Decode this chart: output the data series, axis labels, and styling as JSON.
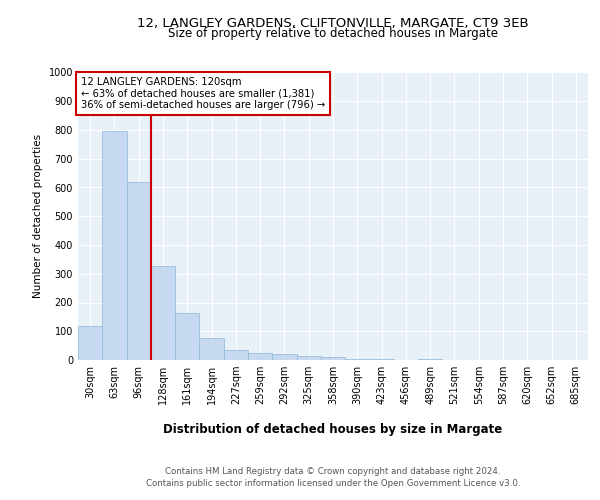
{
  "title1": "12, LANGLEY GARDENS, CLIFTONVILLE, MARGATE, CT9 3EB",
  "title2": "Size of property relative to detached houses in Margate",
  "xlabel": "Distribution of detached houses by size in Margate",
  "ylabel": "Number of detached properties",
  "footer1": "Contains HM Land Registry data © Crown copyright and database right 2024.",
  "footer2": "Contains public sector information licensed under the Open Government Licence v3.0.",
  "annotation_line1": "12 LANGLEY GARDENS: 120sqm",
  "annotation_line2": "← 63% of detached houses are smaller (1,381)",
  "annotation_line3": "36% of semi-detached houses are larger (796) →",
  "categories": [
    "30sqm",
    "63sqm",
    "96sqm",
    "128sqm",
    "161sqm",
    "194sqm",
    "227sqm",
    "259sqm",
    "292sqm",
    "325sqm",
    "358sqm",
    "390sqm",
    "423sqm",
    "456sqm",
    "489sqm",
    "521sqm",
    "554sqm",
    "587sqm",
    "620sqm",
    "652sqm",
    "685sqm"
  ],
  "values": [
    120,
    795,
    620,
    328,
    162,
    75,
    35,
    25,
    20,
    15,
    10,
    5,
    4,
    1,
    5,
    0,
    0,
    0,
    0,
    0,
    0
  ],
  "bar_color": "#c6d9f0",
  "bar_edge_color": "#8fb8d8",
  "vline_color": "#cc0000",
  "vline_x_index": 3,
  "background_color": "#e8f0f8",
  "grid_color": "#ffffff",
  "annotation_box_color": "#ffffff",
  "annotation_border_color": "#cc0000",
  "ylim": [
    0,
    1000
  ],
  "yticks": [
    0,
    100,
    200,
    300,
    400,
    500,
    600,
    700,
    800,
    900,
    1000
  ],
  "title1_fontsize": 9.5,
  "title2_fontsize": 8.5,
  "ylabel_fontsize": 7.5,
  "xlabel_fontsize": 8.5,
  "tick_fontsize": 7.0,
  "annotation_fontsize": 7.2,
  "footer_fontsize": 6.2
}
